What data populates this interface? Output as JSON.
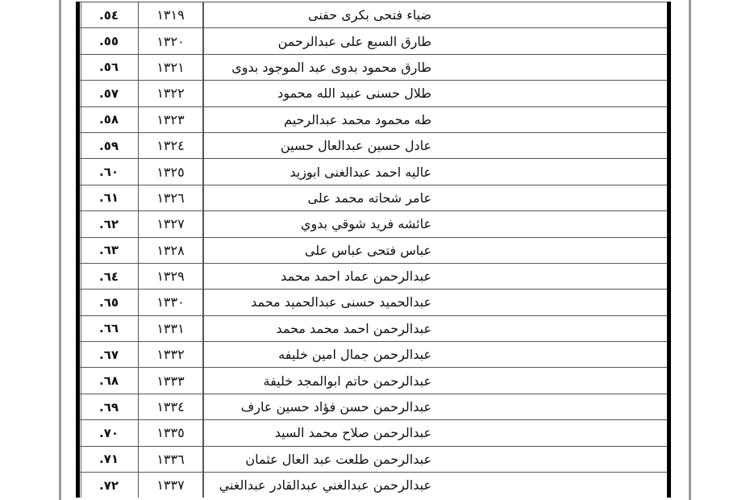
{
  "rows": [
    {
      "index": "٥٤.",
      "code": "١٣١٩",
      "name": "ضياء فتحى بكرى حفنى"
    },
    {
      "index": "٥٥.",
      "code": "١٣٢٠",
      "name": "طارق السبع على عبدالرحمن"
    },
    {
      "index": "٥٦.",
      "code": "١٣٢١",
      "name": "طارق محمود بدوى عبد الموجود بدوى"
    },
    {
      "index": "٥٧.",
      "code": "١٣٢٢",
      "name": "طلال حسنى عبيد الله محمود"
    },
    {
      "index": "٥٨.",
      "code": "١٣٢٣",
      "name": "طه محمود محمد عبدالرحيم"
    },
    {
      "index": "٥٩.",
      "code": "١٣٢٤",
      "name": "عادل حسين عبدالعال حسين"
    },
    {
      "index": "٦٠.",
      "code": "١٣٢٥",
      "name": "عاليه احمد عبدالغنى ابوزيد"
    },
    {
      "index": "٦١.",
      "code": "١٣٢٦",
      "name": "عامر شحاته محمد على"
    },
    {
      "index": "٦٢.",
      "code": "١٣٢٧",
      "name": "عائشه فريد شوقي بدوي"
    },
    {
      "index": "٦٣.",
      "code": "١٣٢٨",
      "name": "عباس فتحى عباس على"
    },
    {
      "index": "٦٤.",
      "code": "١٣٢٩",
      "name": "عبدالرحمن عماد احمد محمد"
    },
    {
      "index": "٦٥.",
      "code": "١٣٣٠",
      "name": "عبدالحميد حسنى عبدالحميد محمد"
    },
    {
      "index": "٦٦.",
      "code": "١٣٣١",
      "name": "عبدالرحمن احمد محمد محمد"
    },
    {
      "index": "٦٧.",
      "code": "١٣٣٢",
      "name": "عبدالرحمن جمال امين خليفه"
    },
    {
      "index": "٦٨.",
      "code": "١٣٣٣",
      "name": "عبدالرحمن حاتم ابوالمجد خليفة"
    },
    {
      "index": "٦٩.",
      "code": "١٣٣٤",
      "name": "عبدالرحمن حسن فؤاد حسين عارف"
    },
    {
      "index": "٧٠.",
      "code": "١٣٣٥",
      "name": "عبدالرحمن صلاح  محمد السيد"
    },
    {
      "index": "٧١.",
      "code": "١٣٣٦",
      "name": "عبدالرحمن طلعت عبد العال عثمان"
    },
    {
      "index": "٧٢.",
      "code": "١٣٣٧",
      "name": "عبدالرحمن عبدالغني عبدالقادر عبدالغني"
    }
  ]
}
